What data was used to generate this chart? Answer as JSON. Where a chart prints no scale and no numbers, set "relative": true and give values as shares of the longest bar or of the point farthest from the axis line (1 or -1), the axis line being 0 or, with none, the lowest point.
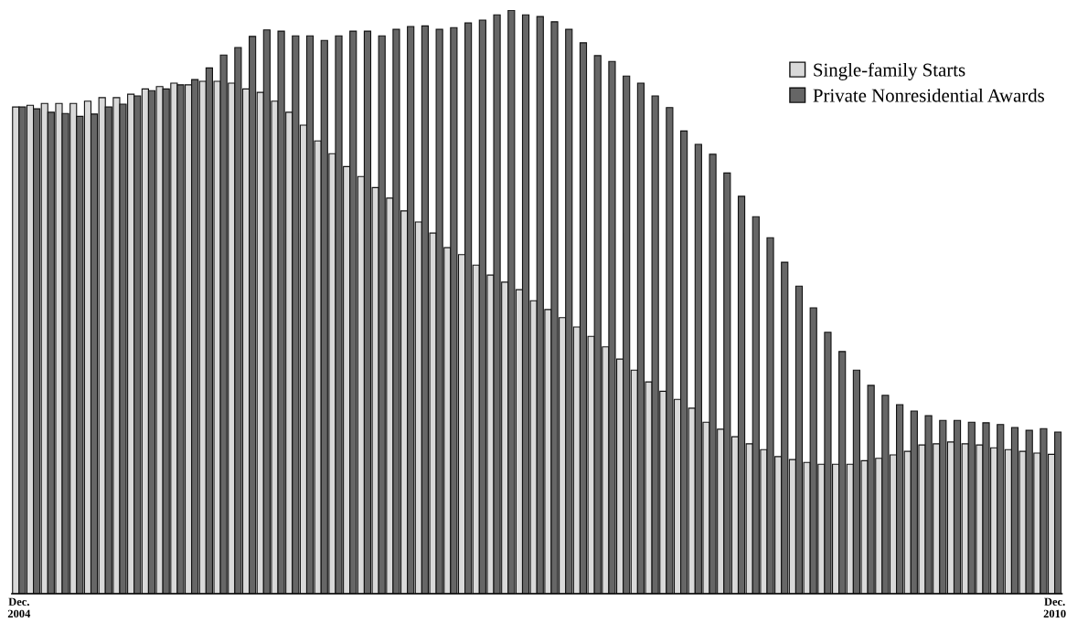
{
  "chart_data": {
    "type": "bar",
    "relative": true,
    "legend": "top right",
    "categories": [
      "Dec.\n2004",
      null,
      null,
      null,
      null,
      null,
      null,
      null,
      null,
      null,
      null,
      null,
      null,
      null,
      null,
      null,
      null,
      null,
      null,
      null,
      null,
      null,
      null,
      null,
      null,
      null,
      null,
      null,
      null,
      null,
      null,
      null,
      null,
      null,
      null,
      null,
      null,
      null,
      null,
      null,
      null,
      null,
      null,
      null,
      null,
      null,
      null,
      null,
      null,
      null,
      null,
      null,
      null,
      null,
      null,
      null,
      null,
      null,
      null,
      null,
      null,
      null,
      null,
      null,
      null,
      null,
      null,
      null,
      null,
      null,
      null,
      null,
      "Dec.\n2010"
    ],
    "series": [
      {
        "name": "Single-family Starts",
        "color": "#d9d9d9",
        "values": [
          0.834,
          0.837,
          0.84,
          0.84,
          0.84,
          0.844,
          0.85,
          0.85,
          0.856,
          0.865,
          0.869,
          0.875,
          0.872,
          0.878,
          0.878,
          0.875,
          0.865,
          0.859,
          0.844,
          0.825,
          0.803,
          0.776,
          0.754,
          0.732,
          0.715,
          0.696,
          0.678,
          0.656,
          0.637,
          0.618,
          0.593,
          0.581,
          0.563,
          0.546,
          0.534,
          0.521,
          0.502,
          0.487,
          0.473,
          0.457,
          0.441,
          0.423,
          0.402,
          0.383,
          0.363,
          0.347,
          0.333,
          0.318,
          0.294,
          0.282,
          0.269,
          0.257,
          0.247,
          0.235,
          0.23,
          0.225,
          0.222,
          0.222,
          0.222,
          0.228,
          0.232,
          0.238,
          0.244,
          0.255,
          0.257,
          0.26,
          0.257,
          0.255,
          0.25,
          0.247,
          0.244,
          0.241,
          0.239
        ]
      },
      {
        "name": "Private Nonresidential Awards",
        "color": "#666666",
        "values": [
          0.834,
          0.831,
          0.825,
          0.823,
          0.818,
          0.822,
          0.834,
          0.839,
          0.853,
          0.862,
          0.865,
          0.872,
          0.881,
          0.901,
          0.923,
          0.936,
          0.955,
          0.966,
          0.964,
          0.956,
          0.956,
          0.948,
          0.956,
          0.964,
          0.964,
          0.956,
          0.967,
          0.972,
          0.973,
          0.967,
          0.97,
          0.978,
          0.983,
          0.992,
          1.0,
          0.992,
          0.989,
          0.98,
          0.967,
          0.944,
          0.922,
          0.912,
          0.887,
          0.875,
          0.853,
          0.833,
          0.793,
          0.77,
          0.753,
          0.721,
          0.681,
          0.646,
          0.61,
          0.568,
          0.527,
          0.49,
          0.448,
          0.415,
          0.383,
          0.357,
          0.34,
          0.324,
          0.313,
          0.305,
          0.297,
          0.297,
          0.294,
          0.293,
          0.29,
          0.285,
          0.28,
          0.283,
          0.277
        ]
      }
    ]
  }
}
